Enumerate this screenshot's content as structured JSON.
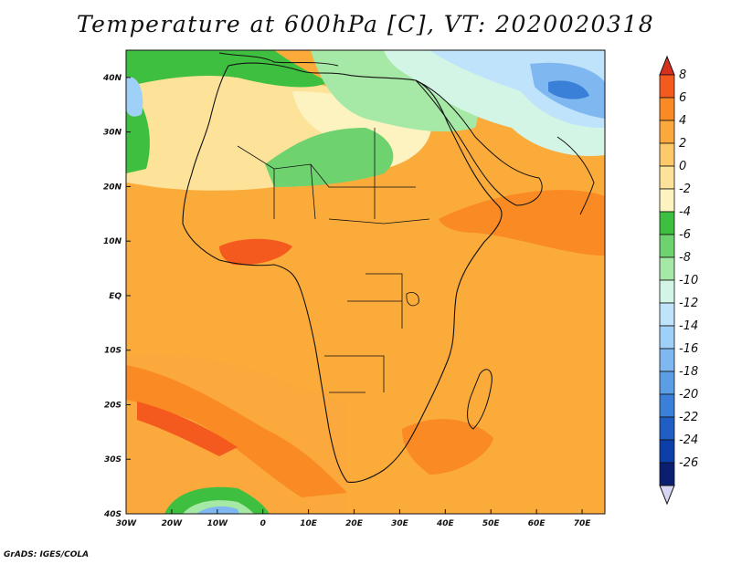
{
  "title": "Temperature at 600hPa [C], VT: 2020020318",
  "credit": "GrADS: IGES/COLA",
  "map": {
    "lon_ticks": [
      "30W",
      "20W",
      "10W",
      "0",
      "10E",
      "20E",
      "30E",
      "40E",
      "50E",
      "60E",
      "70E"
    ],
    "lat_ticks": [
      "40N",
      "30N",
      "20N",
      "10N",
      "EQ",
      "10S",
      "20S",
      "30S",
      "40S"
    ],
    "lon_range": [
      -30,
      75
    ],
    "lat_range": [
      -40,
      45
    ]
  },
  "colorbar": {
    "levels": [
      "8",
      "6",
      "4",
      "2",
      "0",
      "-2",
      "-4",
      "-6",
      "-8",
      "-10",
      "-12",
      "-14",
      "-16",
      "-18",
      "-20",
      "-22",
      "-24",
      "-26"
    ],
    "colors": [
      "#d7301f",
      "#f45a1e",
      "#f98a24",
      "#fba93c",
      "#fdc96a",
      "#fde39a",
      "#fdf3c0",
      "#3fbf3f",
      "#6ed36e",
      "#a6e8a6",
      "#d2f5e6",
      "#bfe3fb",
      "#9fd0f7",
      "#7fb8f0",
      "#5c9ee6",
      "#3a80d8",
      "#1f5fc4",
      "#0d3fa8",
      "#0a1f70"
    ],
    "top_color": "#d7301f",
    "bottom_color": "#d6d6f5"
  }
}
